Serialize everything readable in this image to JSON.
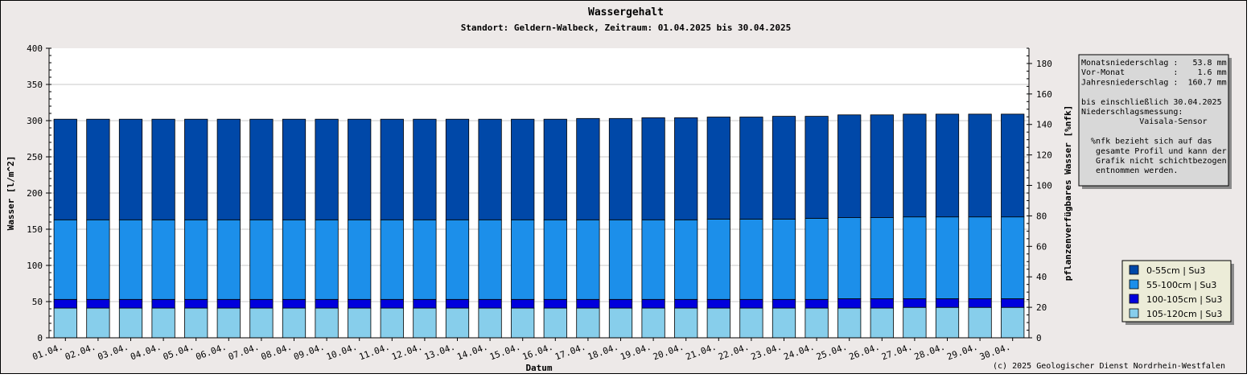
{
  "chart_data": {
    "type": "bar",
    "stacked": true,
    "title": "Wassergehalt",
    "subtitle": "Standort: Geldern-Walbeck, Zeitraum: 01.04.2025 bis 30.04.2025",
    "xlabel": "Datum",
    "ylabel": "Wasser [l/m^2]",
    "y2label": "pflanzenverfügbares Wasser [%nfk]",
    "ylim": [
      0,
      400
    ],
    "y2lim": [
      0,
      190
    ],
    "yticks": [
      "0",
      "50",
      "100",
      "150",
      "200",
      "250",
      "300",
      "350",
      "400"
    ],
    "y2ticks": [
      "0",
      "20",
      "40",
      "60",
      "80",
      "100",
      "120",
      "140",
      "160",
      "180"
    ],
    "grid": true,
    "legend_position": "bottom-right",
    "categories": [
      "01.04.",
      "02.04.",
      "03.04.",
      "04.04.",
      "05.04.",
      "06.04.",
      "07.04.",
      "08.04.",
      "09.04.",
      "10.04.",
      "11.04.",
      "12.04.",
      "13.04.",
      "14.04.",
      "15.04.",
      "16.04.",
      "17.04.",
      "18.04.",
      "19.04.",
      "20.04.",
      "21.04.",
      "22.04.",
      "23.04.",
      "24.04.",
      "25.04.",
      "26.04.",
      "27.04.",
      "28.04.",
      "29.04.",
      "30.04."
    ],
    "series": [
      {
        "name": "105-120cm | Su3",
        "color": "#87ceeb",
        "values": [
          41,
          41,
          41,
          41,
          41,
          41,
          41,
          41,
          41,
          41,
          41,
          41,
          41,
          41,
          41,
          41,
          41,
          41,
          41,
          41,
          41,
          41,
          41,
          41,
          41,
          41,
          42,
          42,
          42,
          42
        ]
      },
      {
        "name": "100-105cm | Su3",
        "color": "#0000dd",
        "values": [
          12,
          12,
          12,
          12,
          12,
          12,
          12,
          12,
          12,
          12,
          12,
          12,
          12,
          12,
          12,
          12,
          12,
          12,
          12,
          12,
          12,
          12,
          12,
          12,
          13,
          13,
          12,
          12,
          12,
          12
        ]
      },
      {
        "name": "55-100cm | Su3",
        "color": "#1c8fea",
        "values": [
          110,
          110,
          110,
          110,
          110,
          110,
          110,
          110,
          110,
          110,
          110,
          110,
          110,
          110,
          110,
          110,
          110,
          110,
          110,
          110,
          111,
          111,
          111,
          112,
          112,
          112,
          113,
          113,
          113,
          113
        ]
      },
      {
        "name": "0-55cm | Su3",
        "color": "#0048a8",
        "values": [
          139,
          139,
          139,
          139,
          139,
          139,
          139,
          139,
          139,
          139,
          139,
          139,
          139,
          139,
          139,
          139,
          140,
          140,
          141,
          141,
          141,
          141,
          142,
          141,
          142,
          142,
          142,
          142,
          142,
          142
        ]
      }
    ]
  },
  "info_box": {
    "lines": [
      "Monatsniederschlag :   53.8 mm",
      "Vor-Monat          :    1.6 mm",
      "Jahresniederschlag :  160.7 mm",
      "",
      "bis einschließlich 30.04.2025",
      "Niederschlagsmessung:",
      "            Vaisala-Sensor",
      "",
      "  %nfk bezieht sich auf das",
      "   gesamte Profil und kann der",
      "   Grafik nicht schichtbezogen",
      "   entnommen werden."
    ]
  },
  "footer": {
    "copyright": "(c) 2025 Geologischer Dienst Nordrhein-Westfalen"
  }
}
